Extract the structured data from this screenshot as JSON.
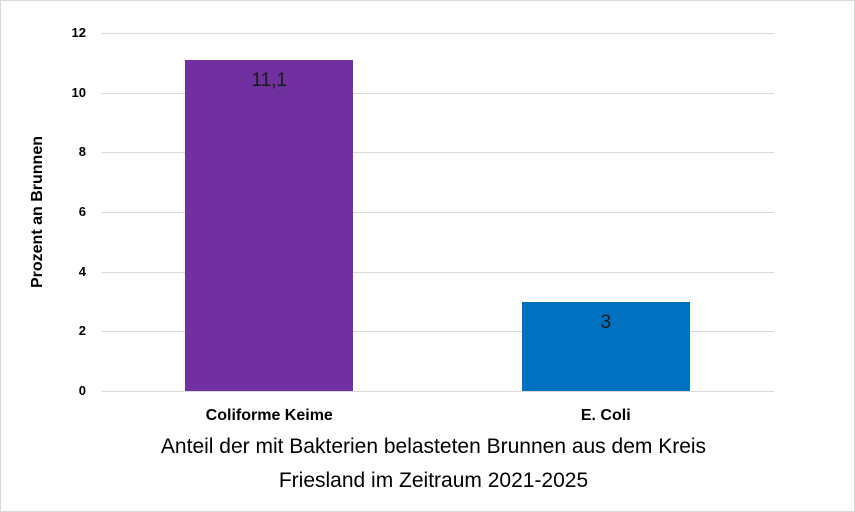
{
  "chart_data": {
    "type": "bar",
    "title": "Anteil der mit Bakterien belasteten Brunnen aus dem Kreis Friesland im Zeitraum 2021-2025",
    "title_lines": [
      "Anteil der mit Bakterien belasteten Brunnen aus dem Kreis",
      "Friesland im Zeitraum 2021-2025"
    ],
    "xlabel": "",
    "ylabel": "Prozent an Brunnen",
    "categories": [
      "Coliforme Keime",
      "E. Coli"
    ],
    "values": [
      11.1,
      3
    ],
    "data_labels": [
      "11,1",
      "3"
    ],
    "colors": [
      "#7030A0",
      "#0070C0"
    ],
    "ylim": [
      0,
      12
    ],
    "yticks": [
      "0",
      "2",
      "4",
      "6",
      "8",
      "10",
      "12"
    ],
    "grid": true,
    "legend": null
  }
}
